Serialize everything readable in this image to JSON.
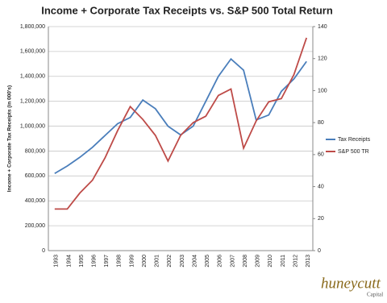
{
  "chart_data": {
    "type": "line",
    "title": "Income + Corporate Tax Receipts vs. S&P 500 Total Return",
    "y_label": "Income + Corporate Tax Receipts (in 000's)",
    "categories": [
      "1993",
      "1994",
      "1995",
      "1996",
      "1997",
      "1998",
      "1999",
      "2000",
      "2001",
      "2002",
      "2003",
      "2004",
      "2005",
      "2006",
      "2007",
      "2008",
      "2009",
      "2010",
      "2011",
      "2012",
      "2013"
    ],
    "series": [
      {
        "name": "Tax Receipts",
        "color": "#4a7ebb",
        "values": [
          620000,
          680000,
          750000,
          830000,
          925000,
          1020000,
          1070000,
          1210000,
          1140000,
          1000000,
          930000,
          1000000,
          1200000,
          1400000,
          1540000,
          1450000,
          1050000,
          1090000,
          1280000,
          1380000,
          1520000
        ]
      },
      {
        "name": "S&P 500 TR",
        "color": "#be4b48",
        "axis": "y2",
        "values": [
          26,
          26,
          36,
          44,
          58,
          75,
          90,
          82,
          72,
          56,
          72,
          80,
          84,
          97,
          101,
          64,
          81,
          93,
          95,
          110,
          133
        ]
      }
    ],
    "ylim": [
      0,
      1800000
    ],
    "yticks": [
      0,
      {
        "value": 200000,
        "label": "200,000"
      },
      {
        "value": 400000,
        "label": "400,000"
      },
      {
        "value": 600000,
        "label": "600,000"
      },
      {
        "value": 800000,
        "label": "800,000"
      },
      {
        "value": 1000000,
        "label": "1,000,000"
      },
      {
        "value": 1200000,
        "label": "1,200,000"
      },
      {
        "value": 1400000,
        "label": "1,400,000"
      },
      {
        "value": 1600000,
        "label": "1,600,000"
      },
      {
        "value": 1800000,
        "label": "1,800,000"
      }
    ],
    "y2lim": [
      0,
      140
    ],
    "y2ticks": [
      0,
      20,
      40,
      60,
      80,
      100,
      120,
      140
    ],
    "grid": true,
    "legend": "right"
  },
  "brand": {
    "name": "huneycutt",
    "sub": "Capital"
  }
}
